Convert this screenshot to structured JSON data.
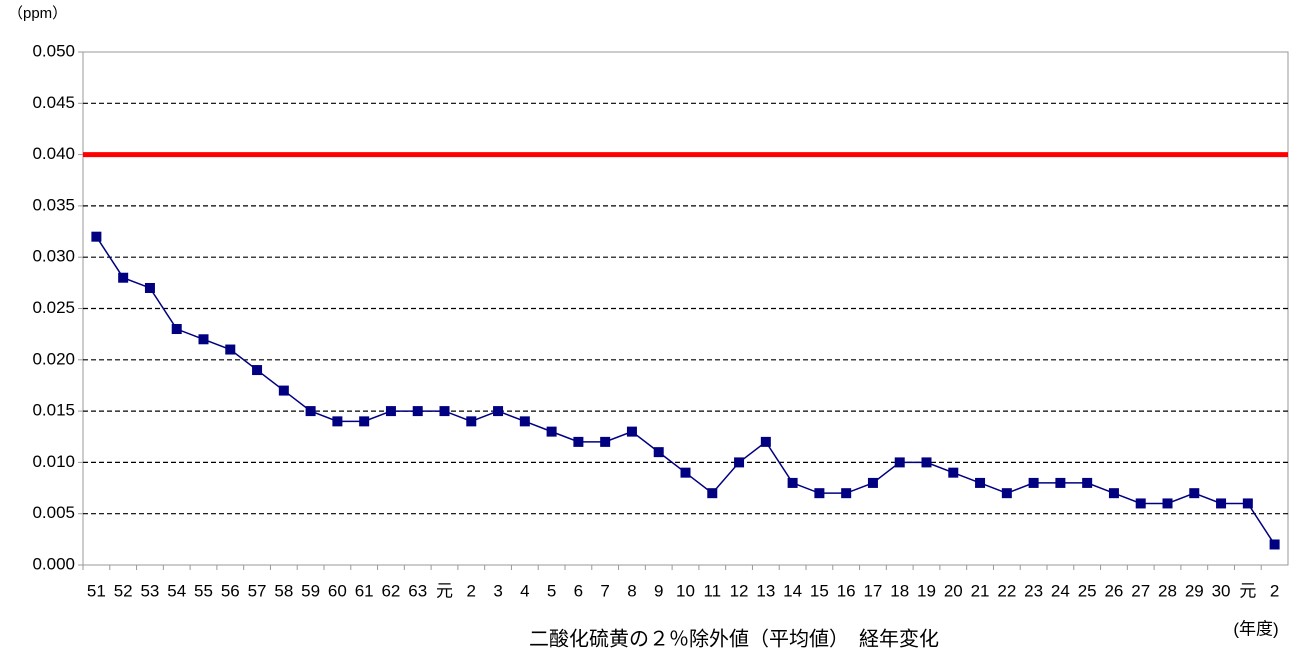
{
  "chart_data": {
    "type": "line",
    "title": "二酸化硫黄の２％除外値（平均値）　経年変化",
    "y_unit": "（ppm）",
    "x_unit": "(年度)",
    "categories": [
      "51",
      "52",
      "53",
      "54",
      "55",
      "56",
      "57",
      "58",
      "59",
      "60",
      "61",
      "62",
      "63",
      "元",
      "2",
      "3",
      "4",
      "5",
      "6",
      "7",
      "8",
      "9",
      "10",
      "11",
      "12",
      "13",
      "14",
      "15",
      "16",
      "17",
      "18",
      "19",
      "20",
      "21",
      "22",
      "23",
      "24",
      "25",
      "26",
      "27",
      "28",
      "29",
      "30",
      "元",
      "2"
    ],
    "values": [
      0.032,
      0.028,
      0.027,
      0.023,
      0.022,
      0.021,
      0.019,
      0.017,
      0.015,
      0.014,
      0.014,
      0.015,
      0.015,
      0.015,
      0.014,
      0.015,
      0.014,
      0.013,
      0.012,
      0.012,
      0.013,
      0.011,
      0.009,
      0.007,
      0.01,
      0.012,
      0.008,
      0.007,
      0.007,
      0.008,
      0.01,
      0.01,
      0.009,
      0.008,
      0.007,
      0.008,
      0.008,
      0.008,
      0.007,
      0.006,
      0.006,
      0.007,
      0.006,
      0.006,
      0.002
    ],
    "color": "#000080",
    "reference_line": {
      "value": 0.04,
      "color": "#ff0000"
    },
    "ylim": [
      0,
      0.05
    ],
    "yticks": [
      {
        "value": 0,
        "label": "0.000"
      },
      {
        "value": 0.005,
        "label": "0.005"
      },
      {
        "value": 0.01,
        "label": "0.010"
      },
      {
        "value": 0.015,
        "label": "0.015"
      },
      {
        "value": 0.02,
        "label": "0.020"
      },
      {
        "value": 0.025,
        "label": "0.025"
      },
      {
        "value": 0.03,
        "label": "0.030"
      },
      {
        "value": 0.035,
        "label": "0.035"
      },
      {
        "value": 0.04,
        "label": "0.040"
      },
      {
        "value": 0.045,
        "label": "0.045"
      },
      {
        "value": 0.05,
        "label": "0.050"
      }
    ],
    "grid": true
  }
}
